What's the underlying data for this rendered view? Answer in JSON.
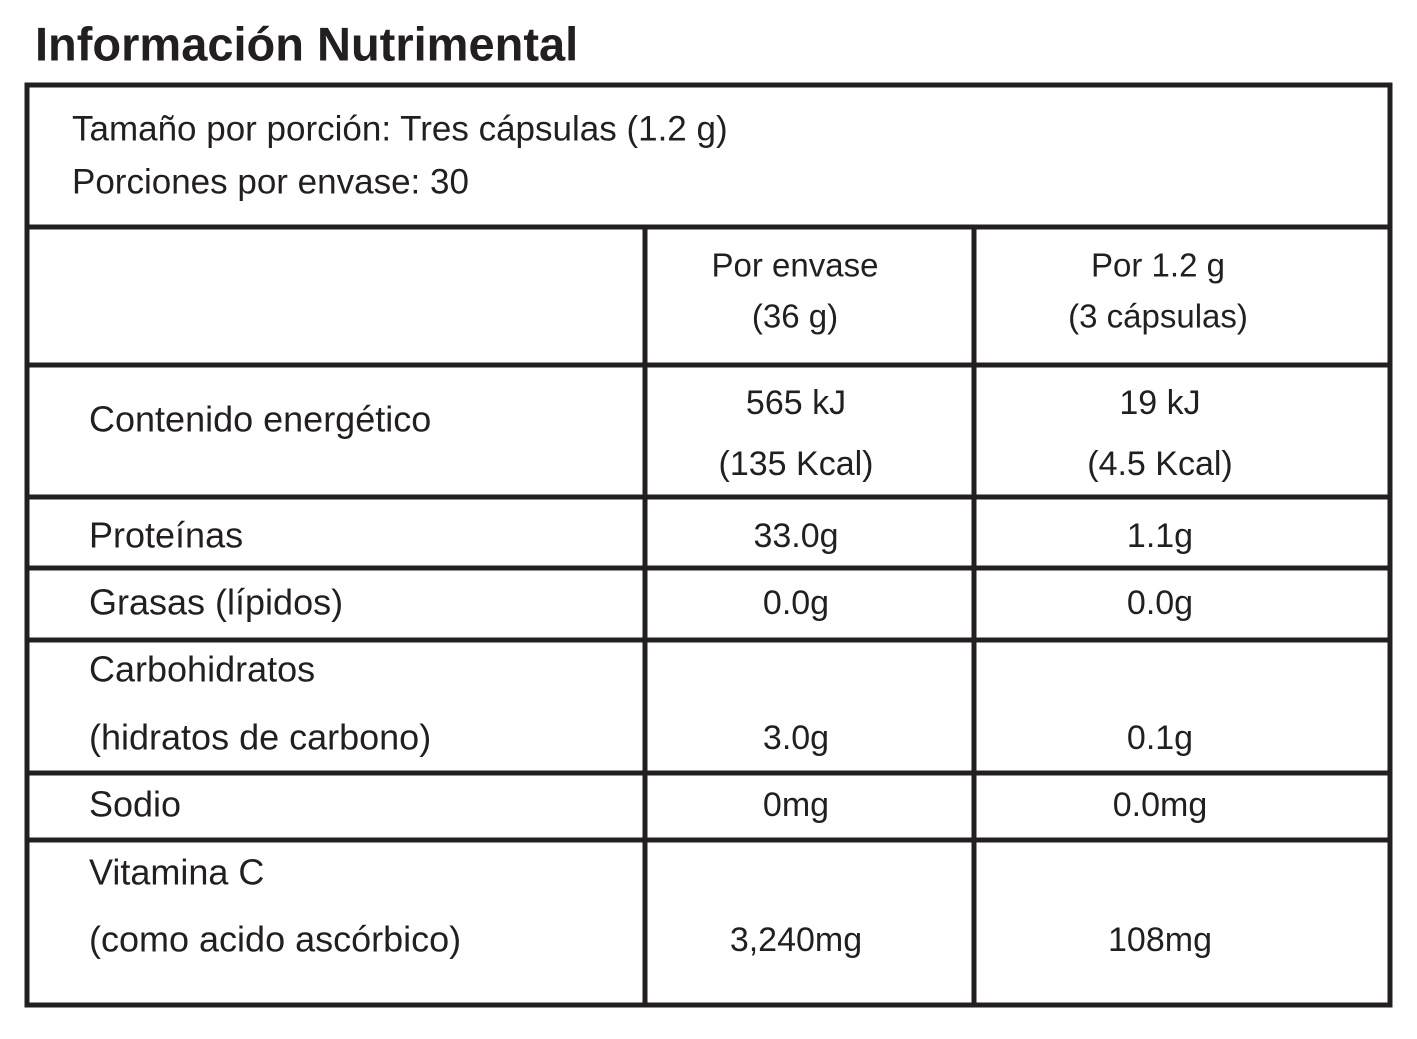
{
  "title": "Información Nutrimental",
  "serving": [
    "Tamaño por porción: Tres cápsulas (1.2 g)",
    "Porciones por envase: 30"
  ],
  "table": {
    "header": [
      [
        "Por envase",
        "(36 g)"
      ],
      [
        "Por 1.2 g",
        "(3 cápsulas)"
      ]
    ],
    "rows": [
      {
        "label": [
          "Contenido energético"
        ],
        "per_package": [
          "565 kJ",
          "(135 Kcal)"
        ],
        "per_serving": [
          "19 kJ",
          "(4.5 Kcal)"
        ]
      },
      {
        "label": [
          "Proteínas"
        ],
        "per_package": [
          "33.0g"
        ],
        "per_serving": [
          "1.1g"
        ]
      },
      {
        "label": [
          "Grasas (lípidos)"
        ],
        "per_package": [
          "0.0g"
        ],
        "per_serving": [
          "0.0g"
        ]
      },
      {
        "label": [
          "Carbohidratos",
          "(hidratos de carbono)"
        ],
        "per_package": [
          "3.0g"
        ],
        "per_serving": [
          "0.1g"
        ]
      },
      {
        "label": [
          "Sodio"
        ],
        "per_package": [
          "0mg"
        ],
        "per_serving": [
          "0.0mg"
        ]
      },
      {
        "label": [
          "Vitamina C",
          "(como acido ascórbico)"
        ],
        "per_package": [
          "3,240mg"
        ],
        "per_serving": [
          "108mg"
        ]
      }
    ]
  }
}
